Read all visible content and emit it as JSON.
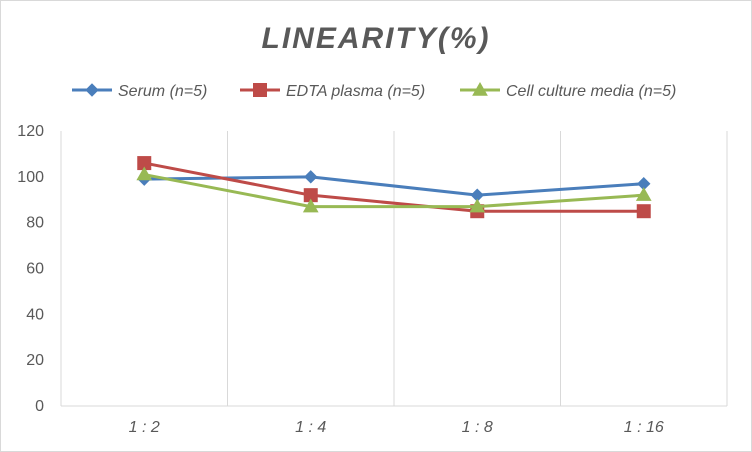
{
  "chart_data": {
    "type": "line",
    "title": "LINEARITY(%)",
    "xlabel": "",
    "ylabel": "",
    "categories": [
      "1:2",
      "1:4",
      "1:8",
      "1:16"
    ],
    "ylim": [
      0,
      120
    ],
    "yticks": [
      0,
      20,
      40,
      60,
      80,
      100,
      120
    ],
    "grid": "vertical",
    "legend_position": "top",
    "series": [
      {
        "name": "Serum (n=5)",
        "values": [
          99,
          100,
          92,
          97
        ],
        "color": "#4a7ebb",
        "marker": "diamond"
      },
      {
        "name": "EDTA plasma (n=5)",
        "values": [
          106,
          92,
          85,
          85
        ],
        "color": "#be4b48",
        "marker": "square"
      },
      {
        "name": "Cell culture media (n=5)",
        "values": [
          101,
          87,
          87,
          92
        ],
        "color": "#98b954",
        "marker": "triangle"
      }
    ]
  }
}
